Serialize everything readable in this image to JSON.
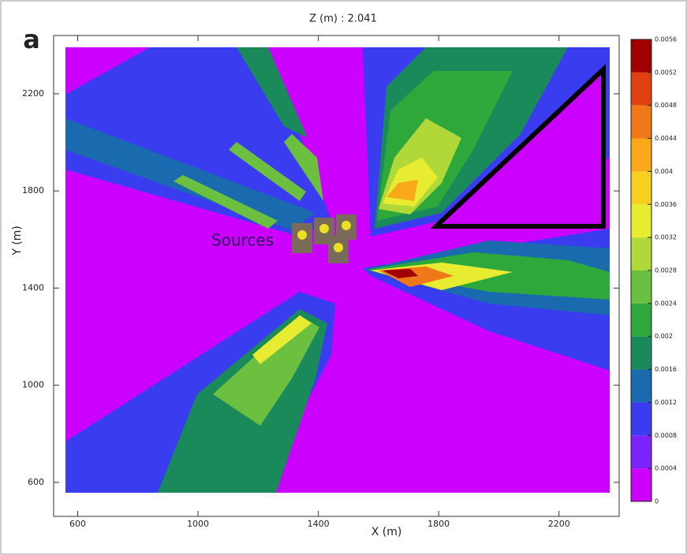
{
  "chart_data": {
    "type": "contour",
    "panel_label": "a",
    "title": "Z (m) : 2.041",
    "x_label": "X (m)",
    "y_label": "Y (m)",
    "annotation": "Sources",
    "xlim": [
      520,
      2400
    ],
    "ylim": [
      460,
      2440
    ],
    "xticks": [
      600,
      1000,
      1400,
      1800,
      2200
    ],
    "yticks": [
      600,
      1000,
      1400,
      1800,
      2200
    ],
    "levels": [
      0,
      0.0004,
      0.0008,
      0.0012,
      0.0016,
      0.002,
      0.0024,
      0.0028,
      0.0032,
      0.0036,
      0.004,
      0.0044,
      0.0048,
      0.0052,
      0.0056
    ],
    "level_colors": [
      "#cc00ff",
      "#7a22ff",
      "#3a3cf0",
      "#1a6ab0",
      "#1a8a5a",
      "#2ea83a",
      "#6cc040",
      "#b0d838",
      "#e8ec30",
      "#f8d020",
      "#f8a818",
      "#f07818",
      "#e04010",
      "#a00000"
    ]
  }
}
